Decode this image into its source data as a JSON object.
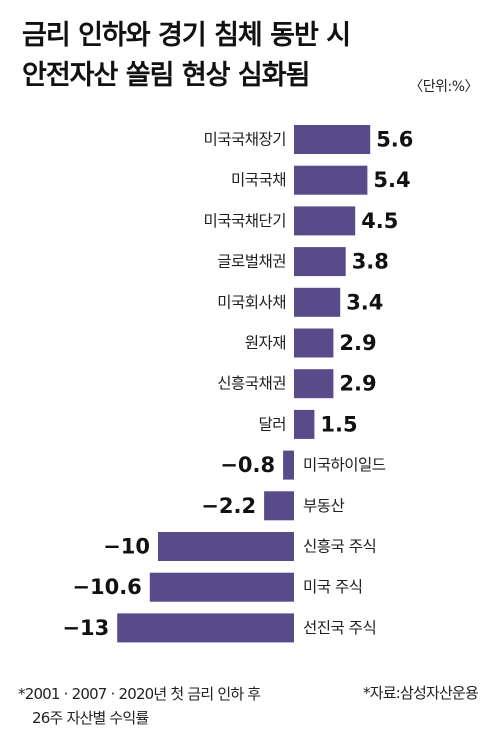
{
  "title_line1": "금리 인하와 경기 침체 동반 시",
  "title_line2": "안전자산 쏠림 현상 심화됨",
  "unit": "〈단위:%〉",
  "footnote_line1": "*2001 · 2007 · 2020년 첫 금리 인하 후",
  "footnote_line2": "26주 자산별 수익률",
  "source": "*자료:삼성자산운용",
  "colors": {
    "bar": "#594a8a"
  },
  "chart_data": {
    "type": "bar",
    "orientation": "horizontal",
    "categories": [
      "미국국채장기",
      "미국국채",
      "미국국채단기",
      "글로벌채권",
      "미국회사채",
      "원자재",
      "신흥국채권",
      "달러",
      "미국하이일드",
      "부동산",
      "신흥국 주식",
      "미국 주식",
      "선진국 주식"
    ],
    "values": [
      5.6,
      5.4,
      4.5,
      3.8,
      3.4,
      2.9,
      2.9,
      1.5,
      -0.8,
      -2.2,
      -10,
      -10.6,
      -13
    ],
    "value_labels": [
      "5.6",
      "5.4",
      "4.5",
      "3.8",
      "3.4",
      "2.9",
      "2.9",
      "1.5",
      "−0.8",
      "−2.2",
      "−10",
      "−10.6",
      "−13"
    ],
    "title": "금리 인하와 경기 침체 동반 시 안전자산 쏠림 현상 심화됨",
    "xlabel": "",
    "ylabel": "",
    "unit": "%",
    "xlim": [
      -13,
      5.6
    ],
    "grid": false
  }
}
